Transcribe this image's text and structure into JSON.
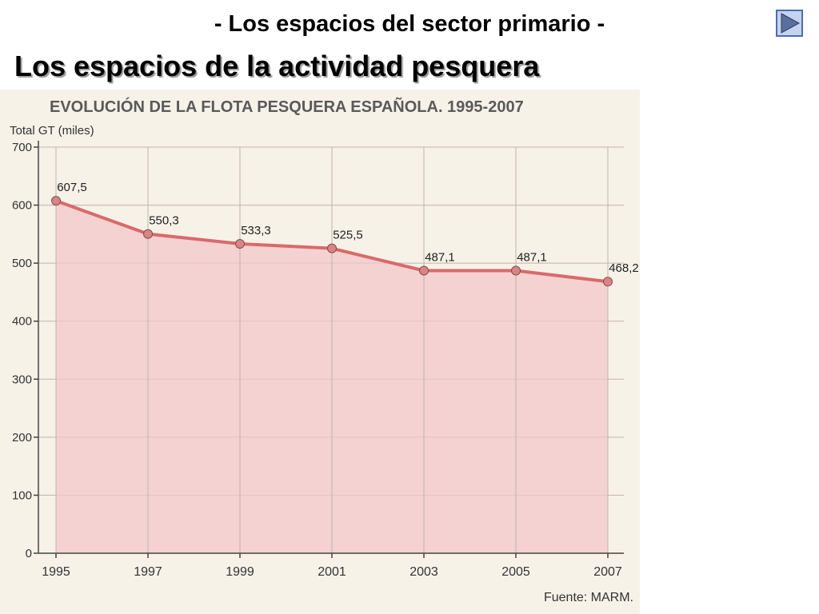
{
  "slide": {
    "subtitle": "- Los espacios del sector primario -",
    "title": "Los espacios de la actividad pesquera"
  },
  "nav": {
    "icon": "play-next-icon"
  },
  "chart_data": {
    "type": "area",
    "title": "EVOLUCIÓN DE LA FLOTA PESQUERA ESPAÑOLA. 1995-2007",
    "ylabel": "Total GT (miles)",
    "xlabel": "",
    "x": [
      "1995",
      "1997",
      "1999",
      "2001",
      "2003",
      "2005",
      "2007"
    ],
    "values": [
      607.5,
      550.3,
      533.3,
      525.5,
      487.1,
      487.1,
      468.2
    ],
    "data_labels": [
      "607,5",
      "550,3",
      "533,3",
      "525,5",
      "487,1",
      "487,1",
      "468,2"
    ],
    "ylim": [
      0,
      700
    ],
    "yticks": [
      0,
      100,
      200,
      300,
      400,
      500,
      600,
      700
    ],
    "grid": true,
    "source": "Fuente: MARM.",
    "colors": {
      "line": "#d96a6a",
      "fill": "#f2c7c9",
      "marker": "#d98585",
      "grid": "#bdb6a8",
      "title": "#5a5a5a"
    }
  }
}
